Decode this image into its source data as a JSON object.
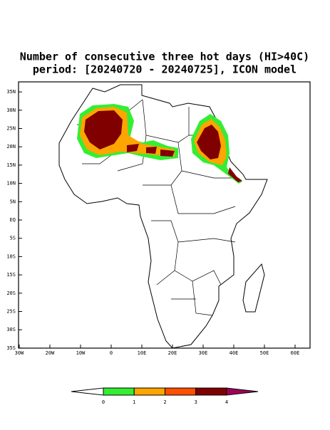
{
  "map": {
    "title": [
      "Number of consecutive three hot days (HI>40C)",
      "period: [20240720 - 20240725], ICON model"
    ],
    "lat_ticks": [
      {
        "value": 35,
        "label": "35N"
      },
      {
        "value": 30,
        "label": "30N"
      },
      {
        "value": 25,
        "label": "25N"
      },
      {
        "value": 20,
        "label": "20N"
      },
      {
        "value": 15,
        "label": "15N"
      },
      {
        "value": 10,
        "label": "10N"
      },
      {
        "value": 5,
        "label": "5N"
      },
      {
        "value": 0,
        "label": "EQ"
      },
      {
        "value": -5,
        "label": "5S"
      },
      {
        "value": -10,
        "label": "10S"
      },
      {
        "value": -15,
        "label": "15S"
      },
      {
        "value": -20,
        "label": "20S"
      },
      {
        "value": -25,
        "label": "25S"
      },
      {
        "value": -30,
        "label": "30S"
      },
      {
        "value": -35,
        "label": "35S"
      }
    ],
    "lon_ticks": [
      {
        "value": -30,
        "label": "30W"
      },
      {
        "value": -20,
        "label": "20W"
      },
      {
        "value": -10,
        "label": "10W"
      },
      {
        "value": 0,
        "label": "0"
      },
      {
        "value": 10,
        "label": "10E"
      },
      {
        "value": 20,
        "label": "20E"
      },
      {
        "value": 30,
        "label": "30E"
      },
      {
        "value": 40,
        "label": "40E"
      },
      {
        "value": 50,
        "label": "50E"
      },
      {
        "value": 60,
        "label": "60E"
      }
    ],
    "colorbar": {
      "levels": [
        0,
        1,
        2,
        3,
        4
      ],
      "colors": [
        "#ffffff",
        "#33ee33",
        "#ffa500",
        "#ff5000",
        "#800000",
        "#a0005a"
      ]
    }
  }
}
